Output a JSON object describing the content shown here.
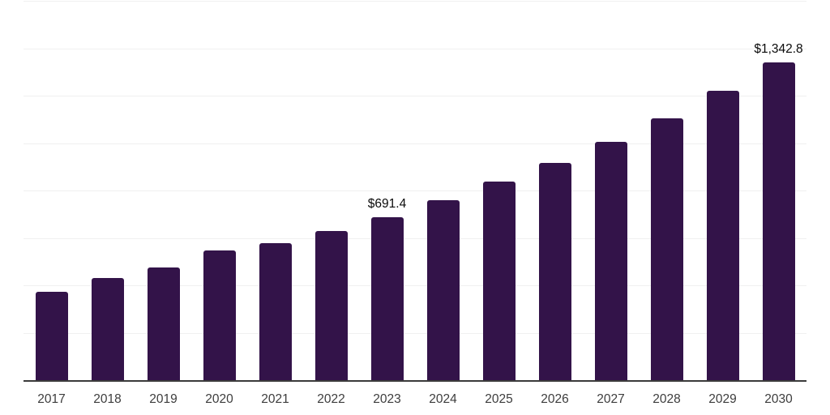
{
  "chart_data": {
    "type": "bar",
    "title": "",
    "xlabel": "",
    "ylabel": "",
    "categories": [
      "2017",
      "2018",
      "2019",
      "2020",
      "2021",
      "2022",
      "2023",
      "2024",
      "2025",
      "2026",
      "2027",
      "2028",
      "2029",
      "2030"
    ],
    "values": [
      375.8,
      435.3,
      480.1,
      549.2,
      580.3,
      632.5,
      691.4,
      761.0,
      839.9,
      919.8,
      1010.1,
      1107.9,
      1224.2,
      1342.8
    ],
    "point_labels": [
      "",
      "",
      "",
      "",
      "",
      "",
      "$691.4",
      "",
      "",
      "",
      "",
      "",
      "",
      "$1,342.8"
    ],
    "ylim": [
      0,
      1600
    ],
    "gridline_step": 200,
    "grid": "horizontal",
    "legend": "none",
    "colors": {
      "bar": "#331349",
      "gridline": "#f0f0f0",
      "axis_line": "#3b3b3b",
      "tick_label": "#3d3d3d",
      "data_label": "#0a0a0a",
      "background": "#ffffff"
    }
  }
}
